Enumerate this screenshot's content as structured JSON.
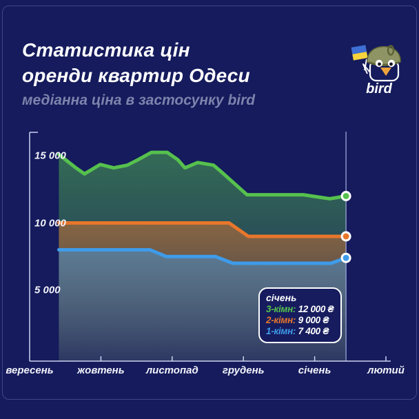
{
  "header": {
    "title_line1": "Статистика цін",
    "title_line2": "оренди квартир Одеси",
    "subtitle": "медіанна ціна в застосунку bird",
    "logo_label": "bird"
  },
  "colors": {
    "background": "#151b5c",
    "title_text": "#ffffff",
    "subtitle_text": "#7c84ad",
    "axis": "#ccd3f0",
    "marker_line": "#9ba5d8",
    "accent_green": "#56c14e",
    "accent_orange": "#e8762b",
    "accent_blue": "#3f9be9"
  },
  "chart_data": {
    "type": "line",
    "title": "Статистика цін оренди квартир Одеси",
    "subtitle": "медіанна ціна в застосунку bird",
    "x_categories": [
      "вересень",
      "жовтень",
      "листопад",
      "грудень",
      "січень",
      "лютий"
    ],
    "y_tick_labels": [
      "15 000",
      "10 000",
      "5 000"
    ],
    "y_tick_values": [
      15000,
      10000,
      5000
    ],
    "ylim": [
      0,
      16800
    ],
    "grid": false,
    "legend_position": "tooltip-bottom-right",
    "series": [
      {
        "name": "3-кімн",
        "color": "#56c14e",
        "final_value": 12000,
        "points": [
          [
            0.41,
            15100
          ],
          [
            0.65,
            14100
          ],
          [
            0.77,
            13650
          ],
          [
            0.99,
            14350
          ],
          [
            1.18,
            14100
          ],
          [
            1.37,
            14300
          ],
          [
            1.52,
            14700
          ],
          [
            1.71,
            15250
          ],
          [
            1.93,
            15250
          ],
          [
            2.08,
            14700
          ],
          [
            2.18,
            14100
          ],
          [
            2.36,
            14500
          ],
          [
            2.58,
            14300
          ],
          [
            2.68,
            13850
          ],
          [
            3.05,
            12100
          ],
          [
            3.84,
            12100
          ],
          [
            4.21,
            11800
          ],
          [
            4.44,
            12000
          ]
        ]
      },
      {
        "name": "2-кімн",
        "color": "#e8762b",
        "final_value": 9000,
        "points": [
          [
            0.41,
            10000
          ],
          [
            2.8,
            10000
          ],
          [
            3.07,
            9000
          ],
          [
            4.44,
            9000
          ]
        ]
      },
      {
        "name": "1-кімн",
        "color": "#3f9be9",
        "final_value": 7400,
        "points": [
          [
            0.41,
            8000
          ],
          [
            1.69,
            8000
          ],
          [
            1.92,
            7500
          ],
          [
            2.61,
            7500
          ],
          [
            2.85,
            7000
          ],
          [
            4.23,
            7000
          ],
          [
            4.44,
            7400
          ]
        ]
      }
    ],
    "marker_month_frac": 4.44,
    "tooltip": {
      "title": "січень",
      "rows": [
        {
          "label": "3-кімн:",
          "value": "12 000 ₴",
          "color": "#56c14e"
        },
        {
          "label": "2-кімн:",
          "value": "9 000 ₴",
          "color": "#e8762b"
        },
        {
          "label": "1-кімн:",
          "value": "7 400 ₴",
          "color": "#3f9be9"
        }
      ]
    }
  }
}
